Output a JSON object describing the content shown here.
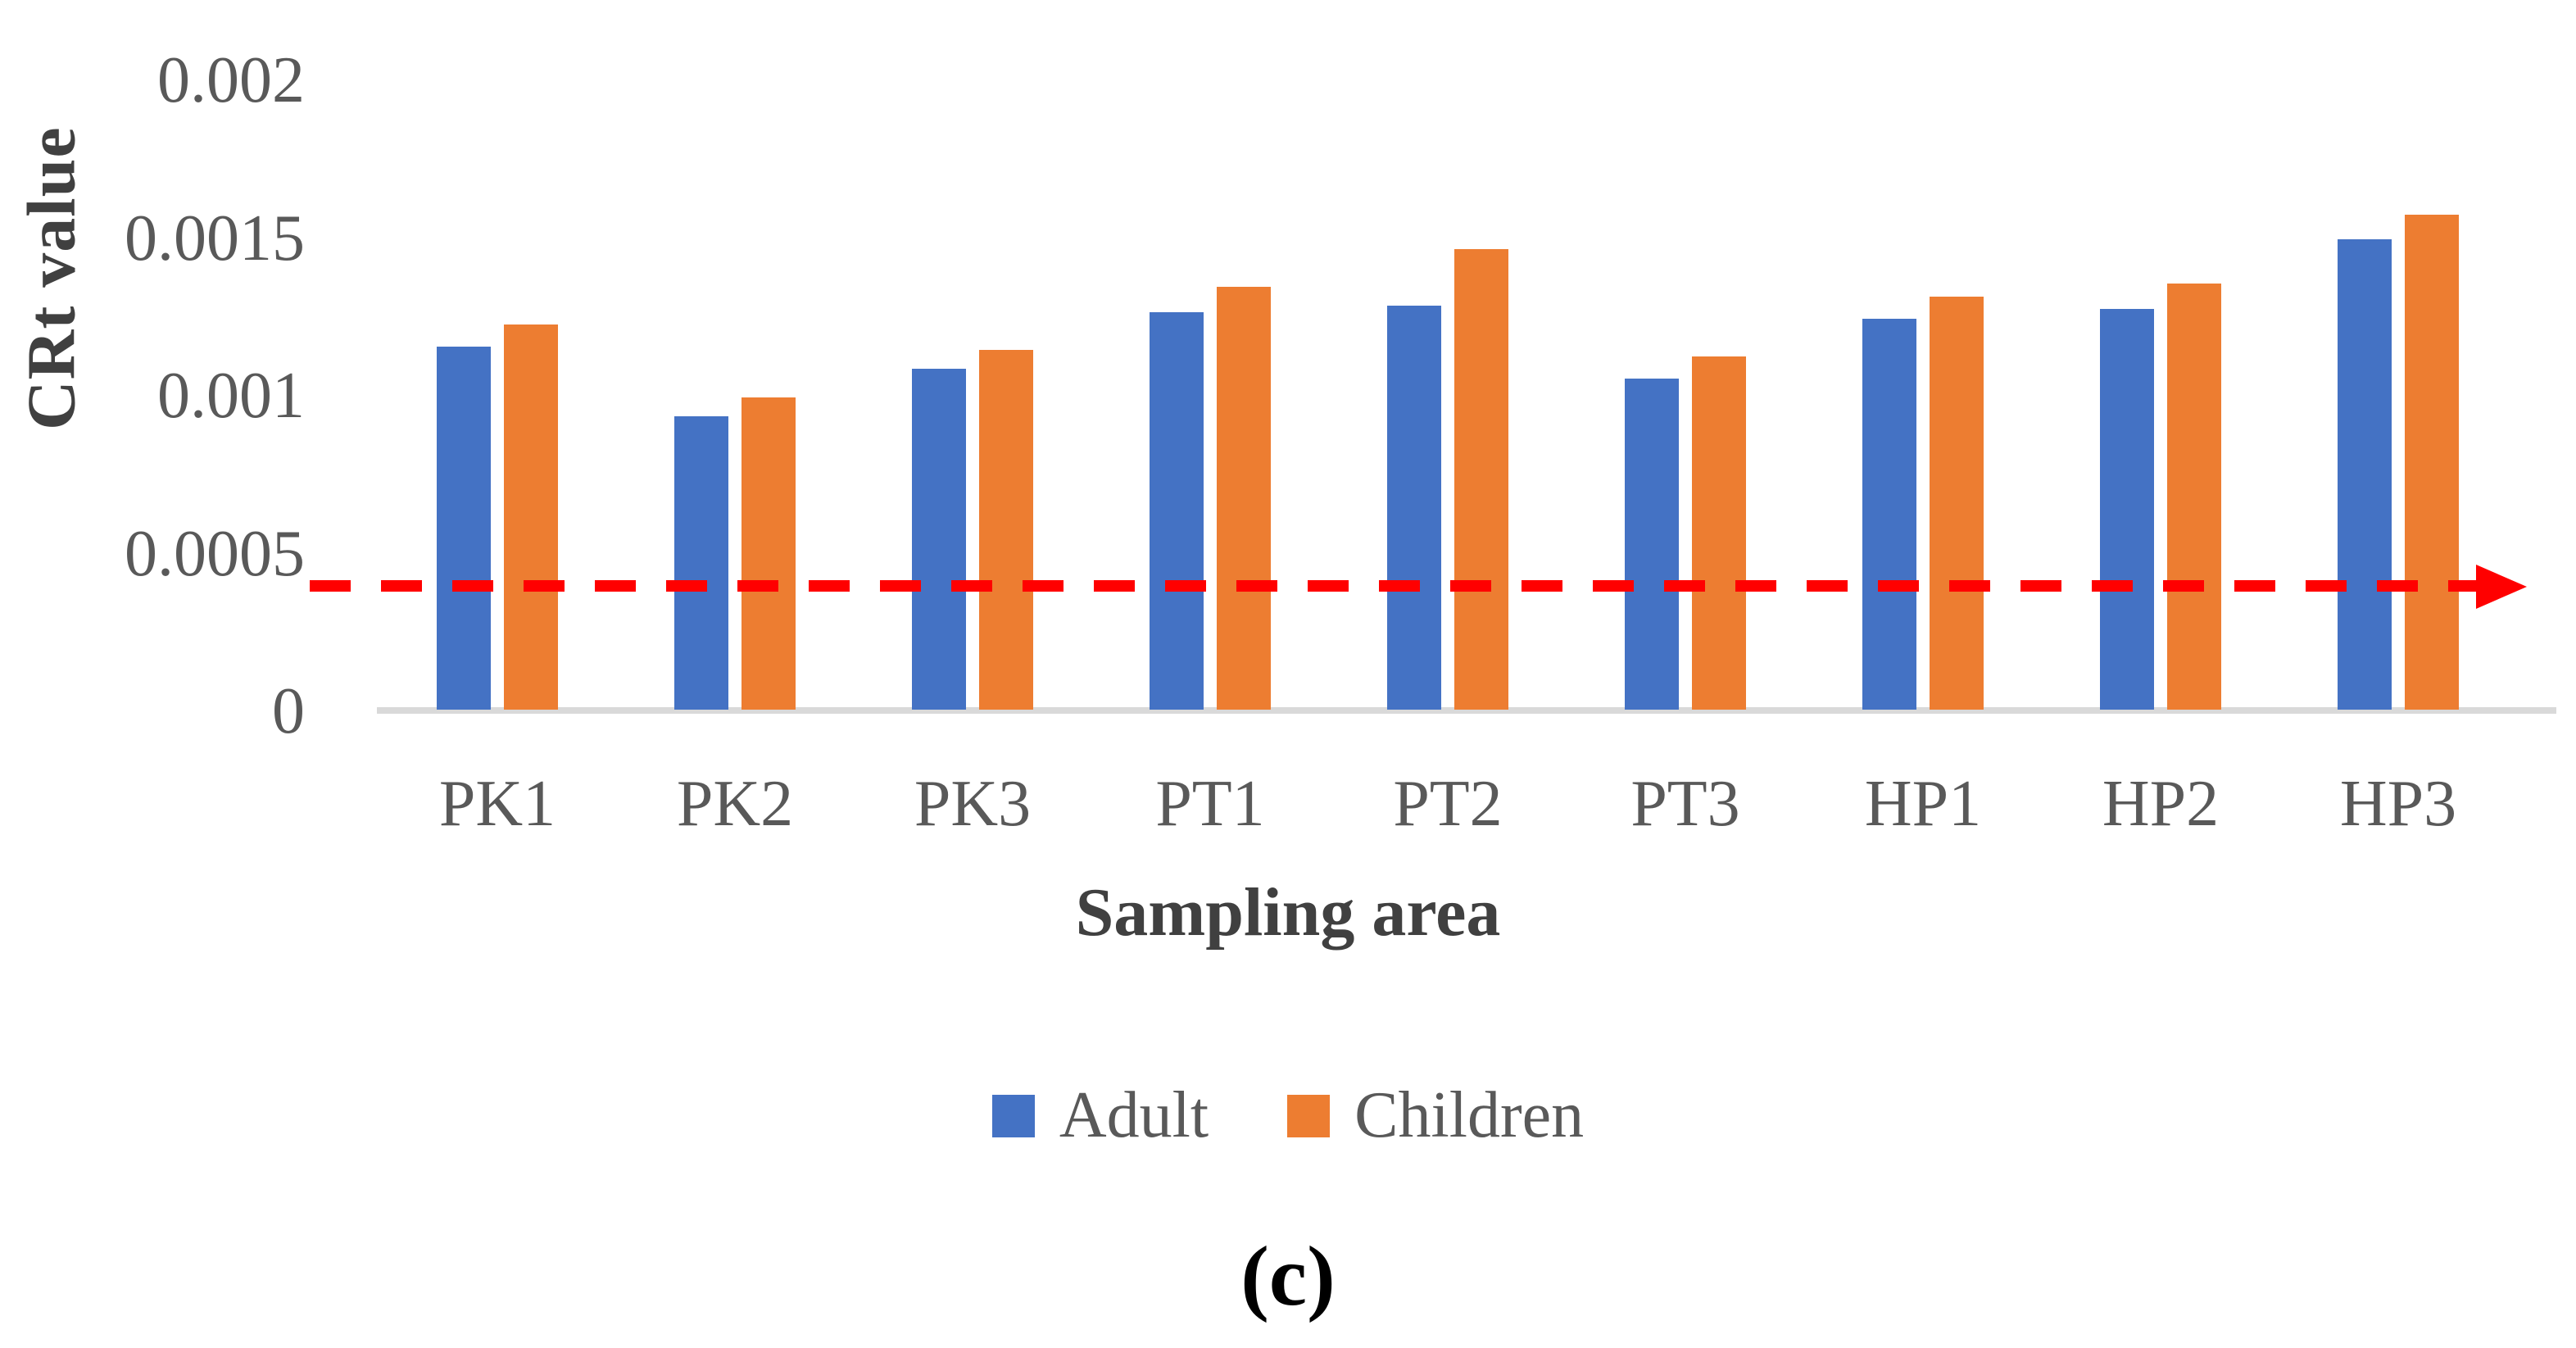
{
  "figure": {
    "y_axis_title": "CRt value",
    "x_axis_title": "Sampling area",
    "caption": "(c)"
  },
  "legend": {
    "items": [
      {
        "label": "Adult",
        "color": "#4472C4"
      },
      {
        "label": "Children",
        "color": "#ED7D31"
      }
    ]
  },
  "chart_data": {
    "type": "bar",
    "title": "",
    "xlabel": "Sampling area",
    "ylabel": "CRt value",
    "categories": [
      "PK1",
      "PK2",
      "PK3",
      "PT1",
      "PT2",
      "PT3",
      "HP1",
      "HP2",
      "HP3"
    ],
    "series": [
      {
        "name": "Adult",
        "color": "#4472C4",
        "values": [
          0.00115,
          0.00093,
          0.00108,
          0.00126,
          0.00128,
          0.00105,
          0.00124,
          0.00127,
          0.00149
        ]
      },
      {
        "name": "Children",
        "color": "#ED7D31",
        "values": [
          0.00122,
          0.00099,
          0.00114,
          0.00134,
          0.00146,
          0.00112,
          0.00131,
          0.00135,
          0.00157
        ]
      }
    ],
    "ylim": [
      0,
      0.002
    ],
    "y_ticks": [
      0,
      0.0005,
      0.001,
      0.0015,
      0.002
    ],
    "y_tick_labels": [
      "0",
      "0.0005",
      "0.001",
      "0.0015",
      "0.002"
    ],
    "reference_line": {
      "value": 0.0004,
      "color": "#FF0000",
      "style": "dashed",
      "arrow": "right-filled"
    },
    "grid": false,
    "legend_position": "bottom",
    "bar_colors": {
      "adult": "#4472C4",
      "children": "#ED7D31"
    },
    "axis_line_color": "#D9D9D9",
    "tick_text_color": "#595959"
  }
}
